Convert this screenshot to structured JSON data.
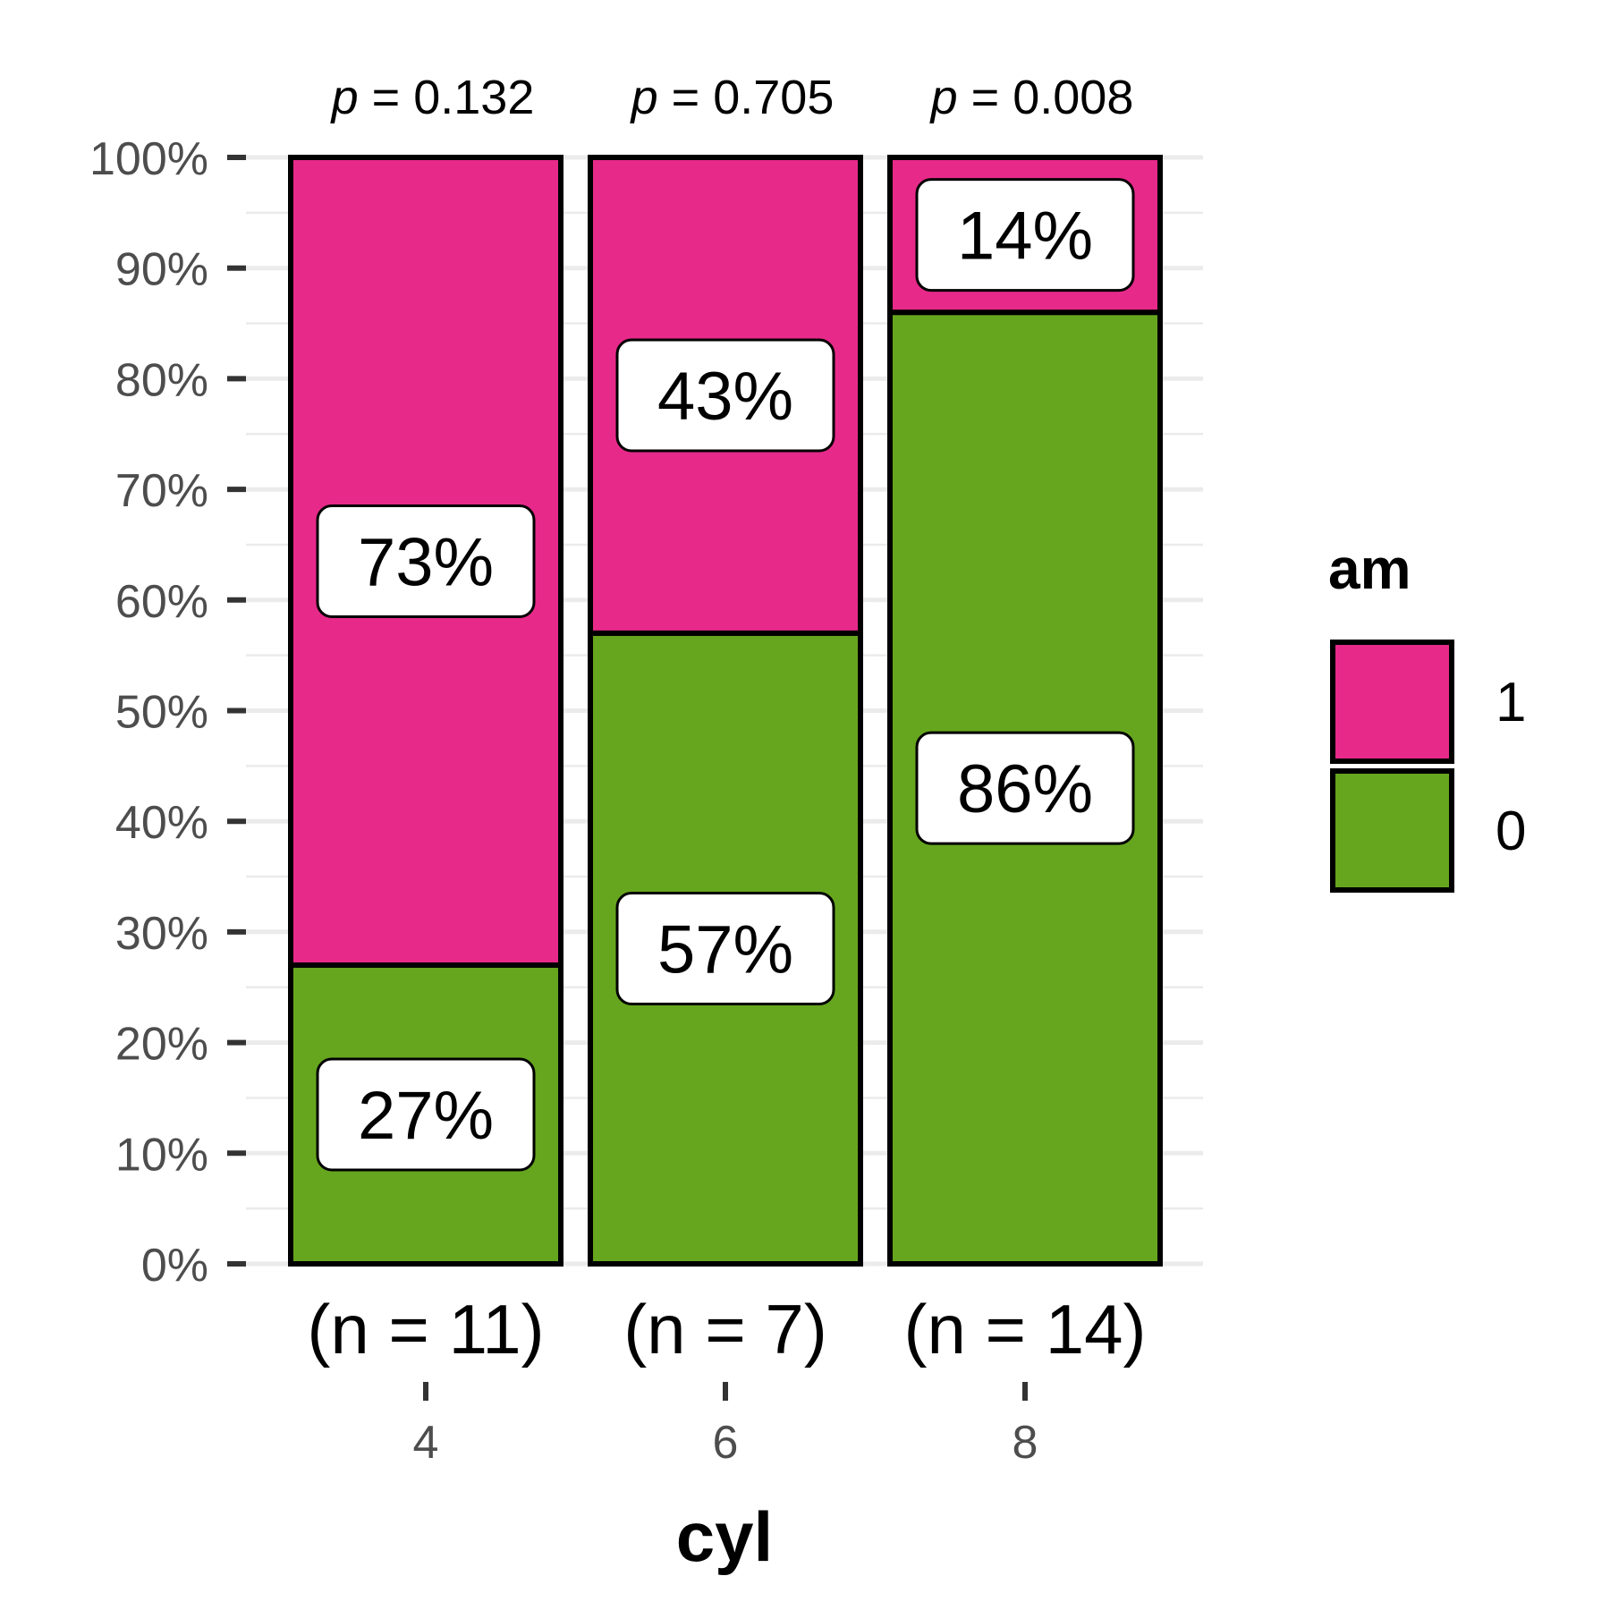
{
  "chart_data": {
    "type": "bar",
    "stacked": true,
    "percent": true,
    "categories": [
      "4",
      "6",
      "8"
    ],
    "series": [
      {
        "name": "0",
        "values": [
          27,
          57,
          86
        ],
        "labels": [
          "27%",
          "57%",
          "86%"
        ],
        "color": "#66A61E"
      },
      {
        "name": "1",
        "values": [
          73,
          43,
          14
        ],
        "labels": [
          "73%",
          "43%",
          "14%"
        ],
        "color": "#E7298A"
      }
    ],
    "sample_sizes": [
      "(n = 11)",
      "(n = 7)",
      "(n = 14)"
    ],
    "p_values": [
      {
        "prefix": "p",
        "value": " = 0.132"
      },
      {
        "prefix": "p",
        "value": " = 0.705"
      },
      {
        "prefix": "p",
        "value": " = 0.008"
      }
    ],
    "xlabel": "cyl",
    "ylabel": "",
    "ylim": [
      0,
      100
    ],
    "yticks": [
      "0%",
      "10%",
      "20%",
      "30%",
      "40%",
      "50%",
      "60%",
      "70%",
      "80%",
      "90%",
      "100%"
    ],
    "grid": true,
    "legend": {
      "title": "am",
      "position": "right",
      "entries": [
        "1",
        "0"
      ]
    }
  }
}
